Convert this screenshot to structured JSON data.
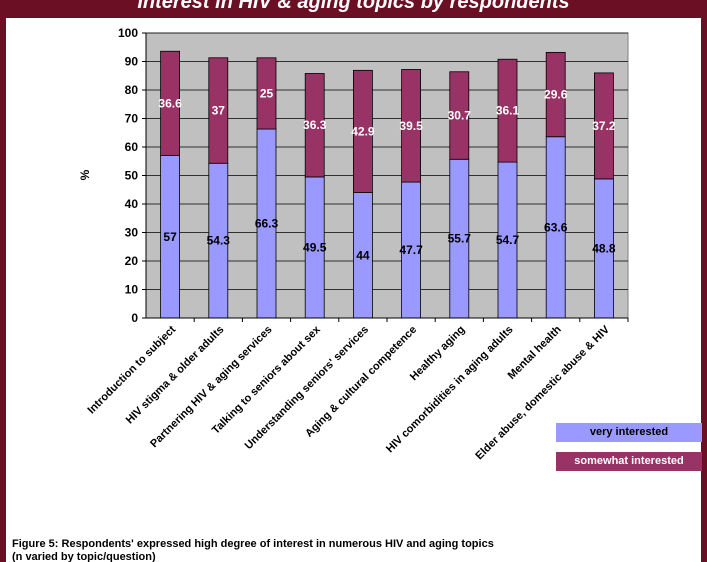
{
  "header": {
    "title": "Interest in HIV & aging topics by respondents"
  },
  "caption": {
    "line1": "Figure 5: Respondents' expressed high degree of interest in numerous HIV and aging topics",
    "line2": "(n varied by topic/question)"
  },
  "colors": {
    "frame": "#6b0f24",
    "very_interested": "#9999ff",
    "somewhat_interested": "#993366",
    "plot_bg": "#c0c0c0"
  },
  "chart_data": {
    "type": "bar",
    "stacked": true,
    "categories": [
      "Introduction to subject",
      "HIV stigma & older adults",
      "Partnering HIV & aging services",
      "Talking to seniors about sex",
      "Understanding seniors' services",
      "Aging & cultural competence",
      "Healthy aging",
      "HIV comorbidities in aging adults",
      "Mental health",
      "Elder abuse, domestic abuse & HIV"
    ],
    "series": [
      {
        "name": "very interested",
        "values": [
          57,
          54.3,
          66.3,
          49.5,
          44,
          47.7,
          55.7,
          54.7,
          63.6,
          48.8
        ]
      },
      {
        "name": "somewhat interested",
        "values": [
          36.6,
          37,
          25,
          36.3,
          42.9,
          39.5,
          30.7,
          36.1,
          29.6,
          37.2
        ]
      }
    ],
    "ylabel": "%",
    "ylim": [
      0,
      100
    ],
    "yticks": [
      0,
      10,
      20,
      30,
      40,
      50,
      60,
      70,
      80,
      90,
      100
    ],
    "grid": true,
    "legend": "bottom-right"
  }
}
